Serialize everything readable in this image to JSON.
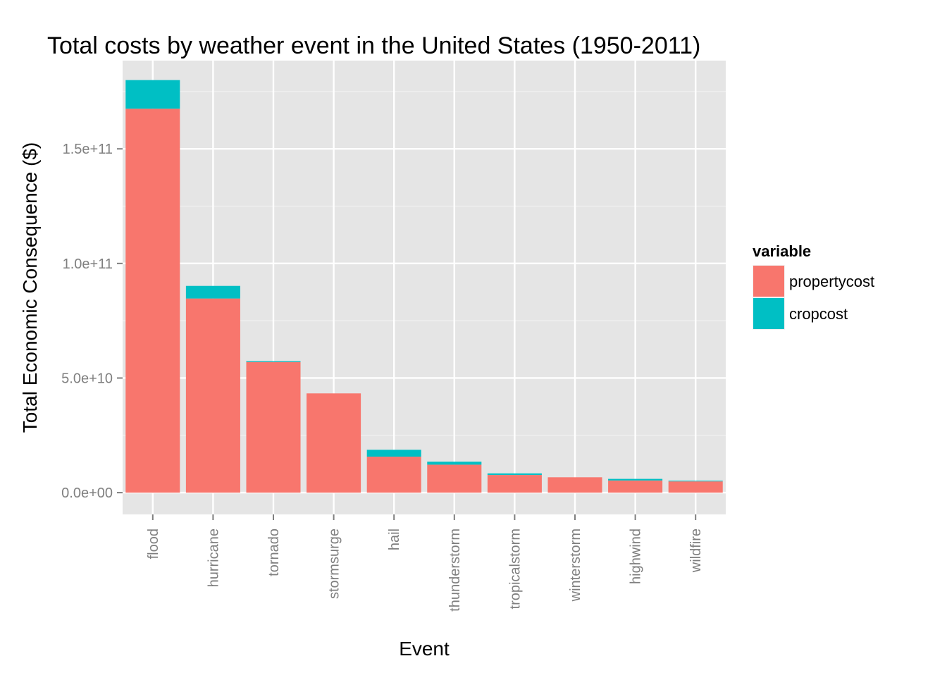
{
  "chart_data": {
    "type": "bar",
    "stacked": true,
    "title": "Total costs by weather event in the United States (1950-2011)",
    "xlabel": "Event",
    "ylabel": "Total Economic Consequence ($)",
    "categories": [
      "flood",
      "hurricane",
      "tornado",
      "stormsurge",
      "hail",
      "thunderstorm",
      "tropicalstorm",
      "winterstorm",
      "highwind",
      "wildfire"
    ],
    "series": [
      {
        "name": "propertycost",
        "color": "#F8766D",
        "values": [
          167500000000,
          84700000000,
          57000000000,
          43300000000,
          15700000000,
          12200000000,
          7700000000,
          6700000000,
          5300000000,
          4900000000
        ]
      },
      {
        "name": "cropcost",
        "color": "#00BFC4",
        "values": [
          12500000000,
          5500000000,
          400000000,
          0,
          3000000000,
          1300000000,
          700000000,
          0,
          700000000,
          300000000
        ]
      }
    ],
    "ylim": [
      -9500000000,
      188500000000
    ],
    "yticks": [
      0,
      50000000000,
      100000000000,
      150000000000
    ],
    "ytick_labels": [
      "0.0e+00",
      "5.0e+10",
      "1.0e+11",
      "1.5e+11"
    ],
    "legend": {
      "title": "variable",
      "position": "right"
    },
    "grid": true,
    "panel_color": "#E5E5E5"
  }
}
